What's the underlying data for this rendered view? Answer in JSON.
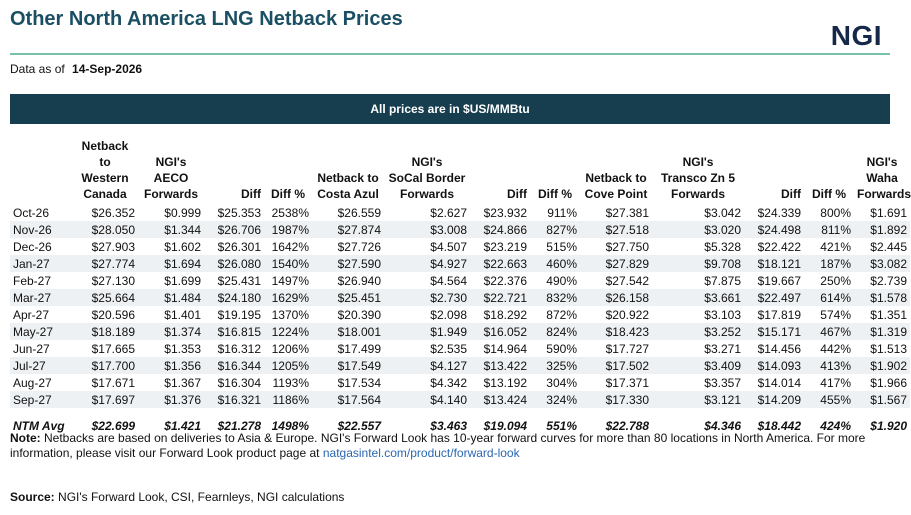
{
  "title": "Other North America LNG Netback Prices",
  "logo": "NGI",
  "as_of_label": "Data as of",
  "as_of_date": "14-Sep-2026",
  "banner": "All prices are in $US/MMBtu",
  "headers": [
    {
      "lines": [
        ""
      ]
    },
    {
      "lines": [
        "Netback to",
        "Western",
        "Canada"
      ]
    },
    {
      "lines": [
        "NGI's",
        "AECO",
        "Forwards"
      ]
    },
    {
      "lines": [
        "Diff"
      ]
    },
    {
      "lines": [
        "Diff %"
      ]
    },
    {
      "lines": [
        "Netback to",
        "Costa Azul"
      ]
    },
    {
      "lines": [
        "NGI's",
        "SoCal Border",
        "Forwards"
      ]
    },
    {
      "lines": [
        "Diff"
      ]
    },
    {
      "lines": [
        "Diff %"
      ]
    },
    {
      "lines": [
        "Netback to",
        "Cove Point"
      ]
    },
    {
      "lines": [
        "NGI's",
        "Transco Zn 5",
        "Forwards"
      ]
    },
    {
      "lines": [
        "Diff"
      ]
    },
    {
      "lines": [
        "Diff %"
      ]
    },
    {
      "lines": [
        "NGI's",
        "Waha",
        "Forwards"
      ]
    }
  ],
  "rows": [
    [
      "Oct-26",
      "$26.352",
      "$0.999",
      "$25.353",
      "2538%",
      "$26.559",
      "$2.627",
      "$23.932",
      "911%",
      "$27.381",
      "$3.042",
      "$24.339",
      "800%",
      "$1.691"
    ],
    [
      "Nov-26",
      "$28.050",
      "$1.344",
      "$26.706",
      "1987%",
      "$27.874",
      "$3.008",
      "$24.866",
      "827%",
      "$27.518",
      "$3.020",
      "$24.498",
      "811%",
      "$1.892"
    ],
    [
      "Dec-26",
      "$27.903",
      "$1.602",
      "$26.301",
      "1642%",
      "$27.726",
      "$4.507",
      "$23.219",
      "515%",
      "$27.750",
      "$5.328",
      "$22.422",
      "421%",
      "$2.445"
    ],
    [
      "Jan-27",
      "$27.774",
      "$1.694",
      "$26.080",
      "1540%",
      "$27.590",
      "$4.927",
      "$22.663",
      "460%",
      "$27.829",
      "$9.708",
      "$18.121",
      "187%",
      "$3.082"
    ],
    [
      "Feb-27",
      "$27.130",
      "$1.699",
      "$25.431",
      "1497%",
      "$26.940",
      "$4.564",
      "$22.376",
      "490%",
      "$27.542",
      "$7.875",
      "$19.667",
      "250%",
      "$2.739"
    ],
    [
      "Mar-27",
      "$25.664",
      "$1.484",
      "$24.180",
      "1629%",
      "$25.451",
      "$2.730",
      "$22.721",
      "832%",
      "$26.158",
      "$3.661",
      "$22.497",
      "614%",
      "$1.578"
    ],
    [
      "Apr-27",
      "$20.596",
      "$1.401",
      "$19.195",
      "1370%",
      "$20.390",
      "$2.098",
      "$18.292",
      "872%",
      "$20.922",
      "$3.103",
      "$17.819",
      "574%",
      "$1.351"
    ],
    [
      "May-27",
      "$18.189",
      "$1.374",
      "$16.815",
      "1224%",
      "$18.001",
      "$1.949",
      "$16.052",
      "824%",
      "$18.423",
      "$3.252",
      "$15.171",
      "467%",
      "$1.319"
    ],
    [
      "Jun-27",
      "$17.665",
      "$1.353",
      "$16.312",
      "1206%",
      "$17.499",
      "$2.535",
      "$14.964",
      "590%",
      "$17.727",
      "$3.271",
      "$14.456",
      "442%",
      "$1.513"
    ],
    [
      "Jul-27",
      "$17.700",
      "$1.356",
      "$16.344",
      "1205%",
      "$17.549",
      "$4.127",
      "$13.422",
      "325%",
      "$17.502",
      "$3.409",
      "$14.093",
      "413%",
      "$1.902"
    ],
    [
      "Aug-27",
      "$17.671",
      "$1.367",
      "$16.304",
      "1193%",
      "$17.534",
      "$4.342",
      "$13.192",
      "304%",
      "$17.371",
      "$3.357",
      "$14.014",
      "417%",
      "$1.966"
    ],
    [
      "Sep-27",
      "$17.697",
      "$1.376",
      "$16.321",
      "1186%",
      "$17.564",
      "$4.140",
      "$13.424",
      "324%",
      "$17.330",
      "$3.121",
      "$14.209",
      "455%",
      "$1.567"
    ]
  ],
  "avg_row": [
    "NTM Avg",
    "$22.699",
    "$1.421",
    "$21.278",
    "1498%",
    "$22.557",
    "$3.463",
    "$19.094",
    "551%",
    "$22.788",
    "$4.346",
    "$18.442",
    "424%",
    "$1.920"
  ],
  "note": {
    "label": "Note:",
    "text": " Netbacks are based on deliveries to Asia & Europe. NGI's Forward Look has 10-year forward curves for more than 80 locations in North America.  For more information, please visit our Forward Look product page at ",
    "link": "natgasintel.com/product/forward-look"
  },
  "source": {
    "label": "Source:",
    "text": "  NGI's Forward Look, CSI, Fearnleys, NGI calculations"
  }
}
